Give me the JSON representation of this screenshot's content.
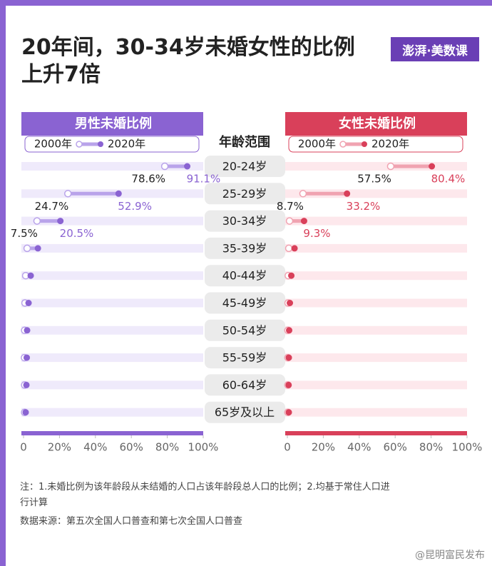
{
  "chart_data": {
    "type": "dumbbell",
    "title": "20年间，30-34岁未婚女性的比例上升7倍",
    "logo": "澎湃·美数课",
    "category_header": "年龄范围",
    "categories": [
      "20-24岁",
      "25-29岁",
      "30-34岁",
      "35-39岁",
      "40-44岁",
      "45-49岁",
      "50-54岁",
      "55-59岁",
      "60-64岁",
      "65岁及以上"
    ],
    "panels": [
      {
        "title": "男性未婚比例",
        "color": "#8a63d2",
        "xlim": [
          0,
          100
        ],
        "xticks": [
          0,
          {
            "value": 20,
            "label": "20%"
          },
          {
            "value": 40,
            "label": "40%"
          },
          {
            "value": 60,
            "label": "60%"
          },
          {
            "value": 80,
            "label": "80%"
          },
          {
            "value": 100,
            "label": "100%"
          }
        ],
        "series": [
          {
            "name": "2000年",
            "color": "#b9a3ea",
            "values": [
              78.6,
              24.7,
              7.5,
              2.0,
              1.2,
              0.8,
              0.6,
              0.5,
              0.6,
              0.6
            ],
            "value_labels": [
              "78.6%",
              "24.7%",
              "7.5%",
              null,
              null,
              null,
              null,
              null,
              null,
              null
            ]
          },
          {
            "name": "2020年",
            "color": "#8a63d2",
            "values": [
              91.1,
              52.9,
              20.5,
              8.0,
              4.0,
              2.8,
              2.0,
              1.8,
              1.6,
              1.2
            ],
            "value_labels": [
              "91.1%",
              "52.9%",
              "20.5%",
              null,
              null,
              null,
              null,
              null,
              null,
              null
            ]
          }
        ]
      },
      {
        "title": "女性未婚比例",
        "color": "#d9405a",
        "xlim": [
          0,
          100
        ],
        "xticks": [
          0,
          {
            "value": 20,
            "label": "20%"
          },
          {
            "value": 40,
            "label": "40%"
          },
          {
            "value": 60,
            "label": "60%"
          },
          {
            "value": 80,
            "label": "80%"
          },
          {
            "value": 100,
            "label": "100%"
          }
        ],
        "series": [
          {
            "name": "2000年",
            "color": "#f0a3b1",
            "values": [
              57.5,
              8.7,
              1.2,
              0.8,
              0.5,
              0.4,
              0.3,
              0.3,
              0.3,
              0.3
            ],
            "value_labels": [
              "57.5%",
              "8.7%",
              null,
              null,
              null,
              null,
              null,
              null,
              null,
              null
            ]
          },
          {
            "name": "2020年",
            "color": "#d9405a",
            "values": [
              80.4,
              33.2,
              9.3,
              4.0,
              2.2,
              1.4,
              1.0,
              0.8,
              0.7,
              0.8
            ],
            "value_labels": [
              "80.4%",
              "33.2%",
              "9.3%",
              null,
              null,
              null,
              null,
              null,
              null,
              null
            ]
          }
        ]
      }
    ],
    "notes": [
      "注：1.未婚比例为该年龄段从未结婚的人口占该年龄段总人口的比例；2.均基于常住人口进行计算",
      "数据来源：第五次全国人口普查和第七次全国人口普查"
    ],
    "watermark": "@昆明富民发布"
  }
}
